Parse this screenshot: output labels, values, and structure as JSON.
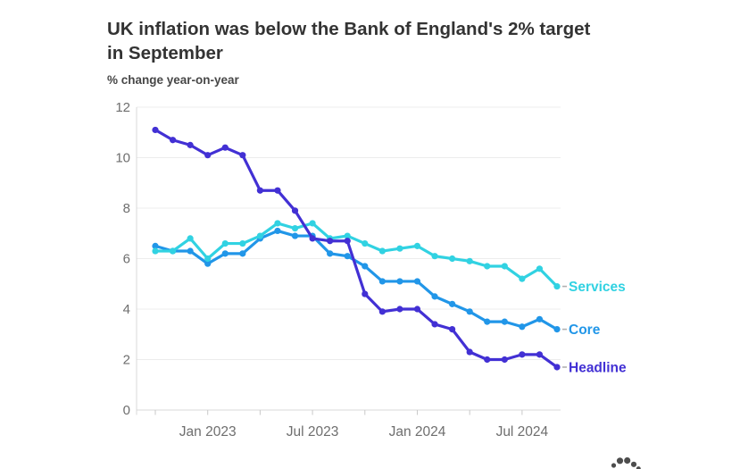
{
  "title": "UK inflation was below the Bank of England's 2% target in September",
  "title_lines": [
    "UK inflation was below the Bank of England's 2% target",
    "in September"
  ],
  "subtitle": "% change year-on-year",
  "chart_data": {
    "type": "line",
    "x": [
      "Oct 2022",
      "Nov 2022",
      "Dec 2022",
      "Jan 2023",
      "Feb 2023",
      "Mar 2023",
      "Apr 2023",
      "May 2023",
      "Jun 2023",
      "Jul 2023",
      "Aug 2023",
      "Sep 2023",
      "Oct 2023",
      "Nov 2023",
      "Dec 2023",
      "Jan 2024",
      "Feb 2024",
      "Mar 2024",
      "Apr 2024",
      "May 2024",
      "Jun 2024",
      "Jul 2024",
      "Aug 2024",
      "Sep 2024"
    ],
    "series": [
      {
        "name": "Services",
        "color": "#31d2e2",
        "values": [
          6.3,
          6.3,
          6.8,
          6.0,
          6.6,
          6.6,
          6.9,
          7.4,
          7.2,
          7.4,
          6.8,
          6.9,
          6.6,
          6.3,
          6.4,
          6.5,
          6.1,
          6.0,
          5.9,
          5.7,
          5.7,
          5.2,
          5.6,
          4.9
        ]
      },
      {
        "name": "Core",
        "color": "#2196e8",
        "values": [
          6.5,
          6.3,
          6.3,
          5.8,
          6.2,
          6.2,
          6.8,
          7.1,
          6.9,
          6.9,
          6.2,
          6.1,
          5.7,
          5.1,
          5.1,
          5.1,
          4.5,
          4.2,
          3.9,
          3.5,
          3.5,
          3.3,
          3.6,
          3.2
        ]
      },
      {
        "name": "Headline",
        "color": "#4230d4",
        "values": [
          11.1,
          10.7,
          10.5,
          10.1,
          10.4,
          10.1,
          8.7,
          8.7,
          7.9,
          6.8,
          6.7,
          6.7,
          4.6,
          3.9,
          4.0,
          4.0,
          3.4,
          3.2,
          2.3,
          2.0,
          2.0,
          2.2,
          2.2,
          1.7
        ]
      }
    ],
    "ylabel": "% change year-on-year",
    "xlabel": "",
    "ylim": [
      0,
      12
    ],
    "yticks": [
      0,
      2,
      4,
      6,
      8,
      10,
      12
    ],
    "xtick_labels": [
      "Jan 2023",
      "Jul 2023",
      "Jan 2024",
      "Jul 2024"
    ],
    "grid": "horizontal",
    "legend_position": "end-of-line"
  }
}
